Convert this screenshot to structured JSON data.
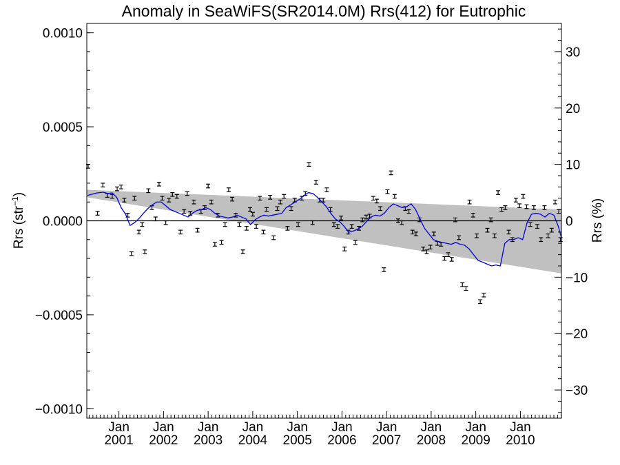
{
  "chart_data": {
    "type": "scatter",
    "title": "Anomaly in SeaWiFS(SR2014.0M) Rrs(412) for Eutrophic",
    "ylabel_left": {
      "main": "Rrs (str",
      "sup": "−1",
      "close": ")"
    },
    "ylabel_right": "Rrs (%)",
    "xlabel": "",
    "xlim": [
      2000.28,
      2010.92
    ],
    "ylim_left": [
      -0.00105,
      0.00105
    ],
    "ylim_right": [
      -35,
      35
    ],
    "yticks_left": [
      "0.0010",
      "0.0005",
      "0.0000",
      "−0.0005",
      "−0.0010"
    ],
    "yticks_left_values": [
      0.001,
      0.0005,
      0,
      -0.0005,
      -0.001
    ],
    "yticks_right": [
      "30",
      "20",
      "10",
      "0",
      "−10",
      "−20",
      "−30"
    ],
    "yticks_right_values": [
      30,
      20,
      10,
      0,
      -10,
      -20,
      -30
    ],
    "xticks": [
      {
        "month": "Jan",
        "year": "2001",
        "value": 2001.0
      },
      {
        "month": "Jan",
        "year": "2002",
        "value": 2002.0
      },
      {
        "month": "Jan",
        "year": "2003",
        "value": 2003.0
      },
      {
        "month": "Jan",
        "year": "2004",
        "value": 2004.0
      },
      {
        "month": "Jan",
        "year": "2005",
        "value": 2005.0
      },
      {
        "month": "Jan",
        "year": "2006",
        "value": 2006.0
      },
      {
        "month": "Jan",
        "year": "2007",
        "value": 2007.0
      },
      {
        "month": "Jan",
        "year": "2008",
        "value": 2008.0
      },
      {
        "month": "Jan",
        "year": "2009",
        "value": 2009.0
      },
      {
        "month": "Jan",
        "year": "2010",
        "value": 2010.0
      }
    ],
    "zero_line": 0.0,
    "trend_band": {
      "color": "#c0c0c0",
      "x": [
        2000.28,
        2010.92
      ],
      "upper": [
        0.000165,
        6e-05
      ],
      "lower": [
        0.000125,
        -0.00028
      ]
    },
    "smoothed_series": {
      "color": "#0000e0",
      "x": [
        2000.3,
        2000.5,
        2000.65,
        2000.75,
        2000.85,
        2000.95,
        2001.05,
        2001.15,
        2001.25,
        2001.35,
        2001.45,
        2001.55,
        2001.65,
        2001.75,
        2001.85,
        2001.95,
        2002.05,
        2002.15,
        2002.25,
        2002.35,
        2002.45,
        2002.55,
        2002.65,
        2002.75,
        2002.85,
        2002.95,
        2003.05,
        2003.15,
        2003.25,
        2003.35,
        2003.45,
        2003.55,
        2003.65,
        2003.75,
        2003.85,
        2003.95,
        2004.05,
        2004.15,
        2004.25,
        2004.35,
        2004.45,
        2004.55,
        2004.65,
        2004.75,
        2004.85,
        2004.95,
        2005.05,
        2005.15,
        2005.25,
        2005.35,
        2005.45,
        2005.55,
        2005.65,
        2005.75,
        2005.85,
        2005.95,
        2006.05,
        2006.15,
        2006.25,
        2006.35,
        2006.45,
        2006.55,
        2006.65,
        2006.75,
        2006.85,
        2006.95,
        2007.05,
        2007.15,
        2007.25,
        2007.35,
        2007.45,
        2007.55,
        2007.65,
        2007.75,
        2007.85,
        2007.95,
        2008.05,
        2008.15,
        2008.25,
        2008.35,
        2008.45,
        2008.55,
        2008.65,
        2008.75,
        2008.85,
        2008.95,
        2009.05,
        2009.15,
        2009.25,
        2009.35,
        2009.45,
        2009.55,
        2009.65,
        2009.75,
        2009.85,
        2009.95,
        2010.05,
        2010.15,
        2010.25,
        2010.35,
        2010.45,
        2010.55,
        2010.65,
        2010.75,
        2010.85,
        2010.92
      ],
      "y": [
        0.000135,
        0.000148,
        0.000152,
        0.000145,
        0.000148,
        0.000125,
        7e-05,
        3.5e-05,
        -2.5e-05,
        -1e-05,
        1.2e-05,
        4e-05,
        6.5e-05,
        8.5e-05,
        0.0001,
        0.0001,
        8e-05,
        6e-05,
        5e-05,
        4e-05,
        3e-05,
        2e-05,
        4e-05,
        5.5e-05,
        6e-05,
        7e-05,
        6e-05,
        4e-05,
        2.5e-05,
        2e-05,
        1.5e-05,
        2e-05,
        3e-05,
        2e-05,
        1e-05,
        -2e-05,
        5e-06,
        2e-05,
        3e-05,
        2.5e-05,
        3e-05,
        3.5e-05,
        4e-05,
        7e-05,
        8.5e-05,
        0.0001,
        0.000115,
        0.000135,
        0.00015,
        0.000145,
        0.000125,
        0.0001,
        7.5e-05,
        4e-05,
        1e-05,
        -5e-06,
        -3e-05,
        -6e-05,
        -5.5e-05,
        -4.5e-05,
        -3e-05,
        -5e-06,
        2e-05,
        3e-05,
        2.5e-05,
        4e-05,
        7e-05,
        9e-05,
        8e-05,
        7e-05,
        7.5e-05,
        9e-05,
        6e-05,
        1e-05,
        -4e-05,
        -7e-05,
        -0.0001,
        -0.00011,
        -0.000115,
        -0.00012,
        -0.000125,
        -0.000115,
        -0.000125,
        -0.00013,
        -0.00015,
        -0.00018,
        -0.00021,
        -0.00022,
        -0.00023,
        -0.00024,
        -0.000235,
        -0.00024,
        -0.00012,
        -0.0001,
        -0.0001,
        -9e-05,
        -0.0001,
        -1e-05,
        3.5e-05,
        4e-05,
        3.5e-05,
        2e-05,
        4e-05,
        3e-05,
        -3e-05,
        -9e-05
      ]
    },
    "points": {
      "x": [
        2000.31,
        2000.52,
        2000.64,
        2000.74,
        2000.85,
        2000.96,
        2001.05,
        2001.12,
        2001.2,
        2001.28,
        2001.35,
        2001.45,
        2001.52,
        2001.58,
        2001.66,
        2001.74,
        2001.82,
        2001.9,
        2001.97,
        2002.05,
        2002.12,
        2002.2,
        2002.3,
        2002.38,
        2002.46,
        2002.53,
        2002.6,
        2002.68,
        2002.76,
        2002.84,
        2002.92,
        2003.0,
        2003.07,
        2003.15,
        2003.22,
        2003.3,
        2003.38,
        2003.46,
        2003.54,
        2003.62,
        2003.7,
        2003.78,
        2003.86,
        2003.94,
        2004.0,
        2004.08,
        2004.16,
        2004.24,
        2004.31,
        2004.39,
        2004.47,
        2004.55,
        2004.62,
        2004.7,
        2004.78,
        2004.86,
        2004.94,
        2005.02,
        2005.1,
        2005.18,
        2005.26,
        2005.34,
        2005.42,
        2005.5,
        2005.58,
        2005.66,
        2005.74,
        2005.82,
        2005.9,
        2005.98,
        2006.06,
        2006.14,
        2006.22,
        2006.3,
        2006.38,
        2006.46,
        2006.54,
        2006.62,
        2006.7,
        2006.78,
        2006.86,
        2006.94,
        2007.02,
        2007.1,
        2007.18,
        2007.26,
        2007.34,
        2007.42,
        2007.5,
        2007.58,
        2007.66,
        2007.74,
        2007.82,
        2007.9,
        2007.98,
        2008.06,
        2008.14,
        2008.22,
        2008.3,
        2008.38,
        2008.46,
        2008.54,
        2008.62,
        2008.7,
        2008.78,
        2008.86,
        2008.94,
        2009.02,
        2009.1,
        2009.18,
        2009.26,
        2009.34,
        2009.42,
        2009.5,
        2009.58,
        2009.66,
        2009.74,
        2009.82,
        2009.9,
        2009.98,
        2010.06,
        2010.14,
        2010.22,
        2010.3,
        2010.38,
        2010.46,
        2010.54,
        2010.62,
        2010.7,
        2010.78,
        2010.86,
        2010.9
      ],
      "y": [
        0.00029,
        4e-05,
        0.00019,
        0.000135,
        0.00013,
        0.00017,
        0.00018,
        0.00011,
        3e-05,
        -0.000175,
        0.00012,
        -6e-05,
        -2e-05,
        -0.000165,
        0.00016,
        7e-05,
        1e-05,
        0.000195,
        0.00012,
        -1e-05,
        0.00011,
        0.00014,
        0.00013,
        -6e-05,
        5e-05,
        0.000145,
        4e-05,
        0.0001,
        -5e-05,
        5e-05,
        7e-05,
        0.000185,
        0.0001,
        -0.000125,
        3e-05,
        -0.000115,
        -2e-05,
        0.000165,
        0.000115,
        3e-05,
        -2e-05,
        -0.000165,
        -4e-05,
        6e-05,
        3.5e-05,
        -3e-05,
        0.00012,
        -6e-05,
        6e-05,
        0.000125,
        -9e-05,
        6.5e-05,
        0.0001,
        0.00013,
        -4e-05,
        6.5e-05,
        0.00011,
        -2e-05,
        0.00012,
        0.000145,
        0.0003,
        -1e-05,
        0.000205,
        0.00011,
        0.00011,
        0.000165,
        6e-05,
        -2e-05,
        -3e-05,
        1.5e-05,
        -0.00015,
        -6e-05,
        -3e-05,
        -0.000115,
        -4e-05,
        5e-06,
        2e-05,
        2.5e-05,
        0.00012,
        0.000105,
        6.5e-05,
        -0.00026,
        0.000155,
        0.000255,
        0.00013,
        0.0,
        -1e-05,
        6.5e-05,
        5e-05,
        -6e-05,
        -7e-05,
        5e-06,
        -0.00015,
        -0.000165,
        -0.00014,
        -7e-05,
        -0.00012,
        -0.000125,
        -0.0002,
        -0.00018,
        -0.000205,
        5e-06,
        -9e-05,
        -0.00034,
        -0.00036,
        0.0001,
        3e-05,
        -8e-05,
        -0.00043,
        -0.000395,
        -5e-05,
        5e-06,
        -8e-05,
        0.00015,
        6e-05,
        7e-05,
        -6e-05,
        -0.0001,
        0.00011,
        8e-05,
        0.00013,
        7.5e-05,
        -2e-05,
        7e-05,
        -3e-05,
        -0.0001,
        7e-05,
        -8e-05,
        -5e-05,
        0.0001,
        5e-05,
        -0.0001
      ],
      "err": 1e-05
    }
  }
}
